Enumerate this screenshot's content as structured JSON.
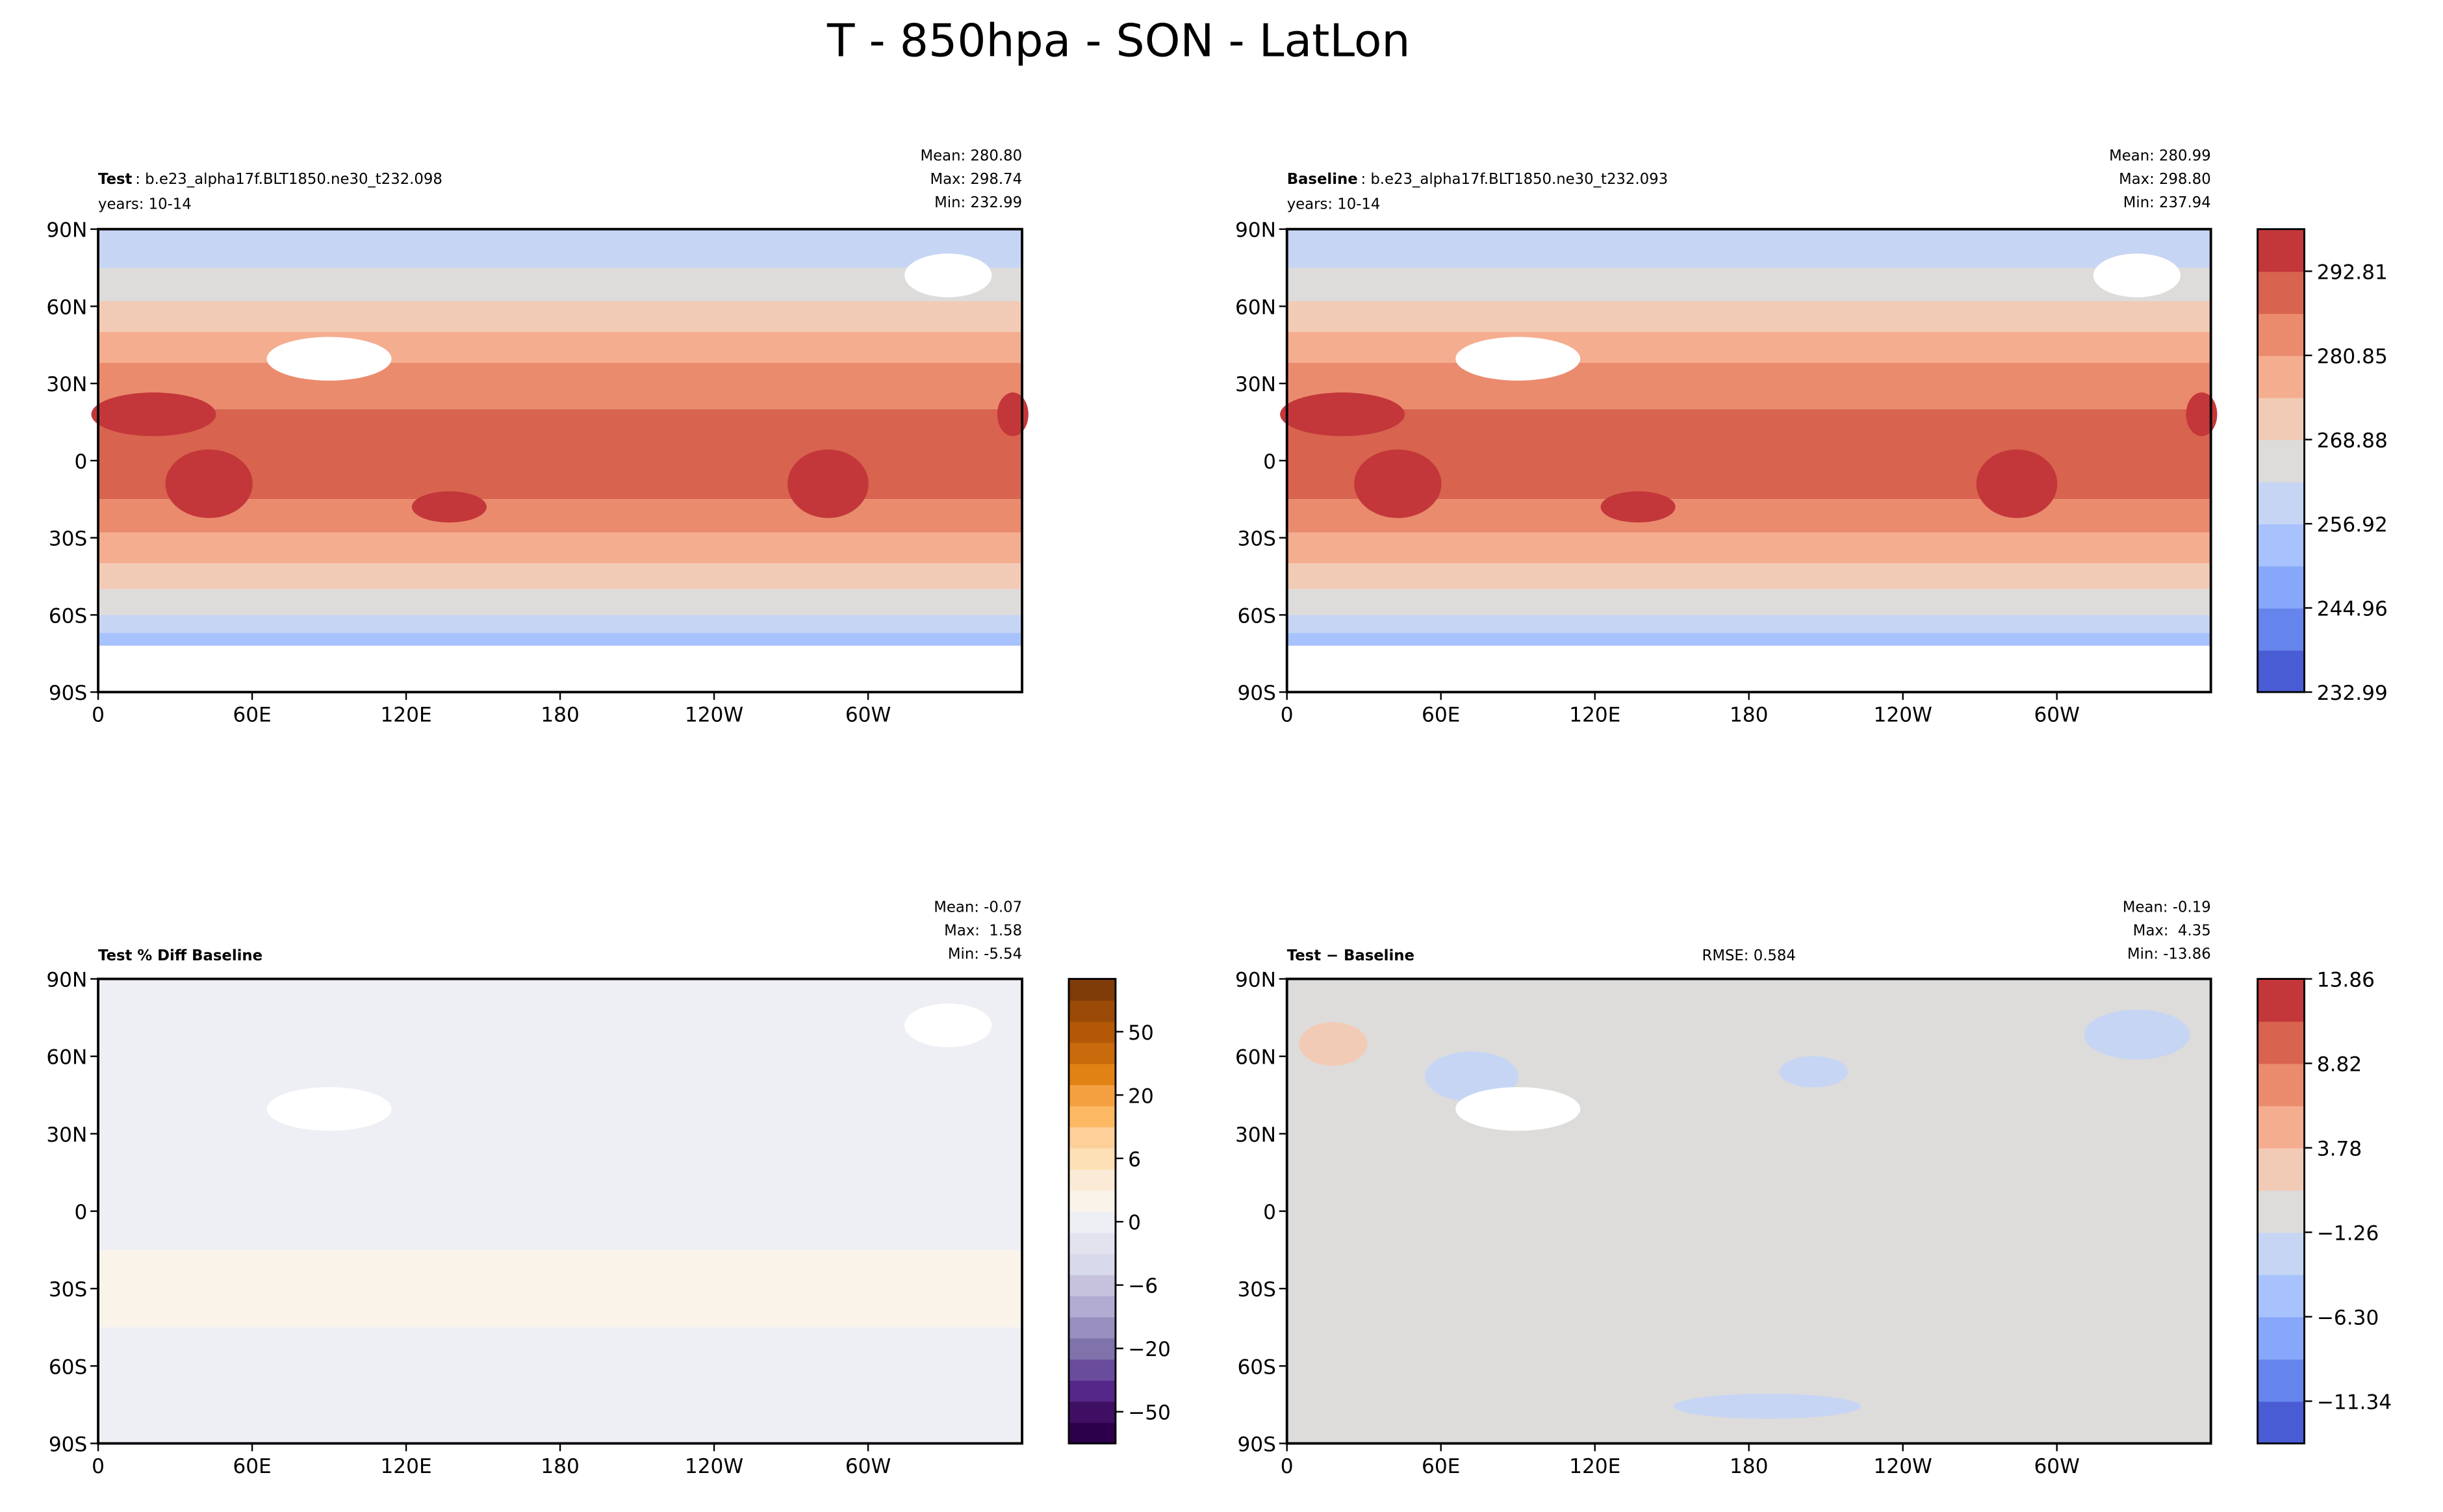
{
  "title": "T - 850hpa - SON - LatLon",
  "map_axes": {
    "xticks": [
      "0",
      "60E",
      "120E",
      "180",
      "120W",
      "60W"
    ],
    "yticks": [
      "90N",
      "60N",
      "30N",
      "0",
      "30S",
      "60S",
      "90S"
    ]
  },
  "panels": [
    {
      "name": "Test",
      "case": ": b.e23_alpha17f.BLT1850.ne30_t232.098",
      "years": "years: 10-14",
      "stats": [
        "Mean: 280.80",
        "Max: 298.74",
        "Min: 232.99"
      ]
    },
    {
      "name": "Baseline",
      "case": ": b.e23_alpha17f.BLT1850.ne30_t232.093",
      "years": "years: 10-14",
      "stats": [
        "Mean: 280.99",
        "Max: 298.80",
        "Min: 237.94"
      ]
    },
    {
      "name": "Test % Diff Baseline",
      "stats": [
        "Mean: -0.07",
        "Max:  1.58",
        "Min: -5.54"
      ]
    },
    {
      "name": "Test − Baseline",
      "rmse": "RMSE: 0.584",
      "stats": [
        "Mean: -0.19",
        "Max:  4.35",
        "Min: -13.86"
      ]
    }
  ],
  "colorbars": [
    {
      "colors": [
        "#4a5cd3",
        "#6685ec",
        "#87a7fa",
        "#a7c2fd",
        "#c6d5f4",
        "#dddcdb",
        "#f2cbb7",
        "#f5ad90",
        "#ea8b6d",
        "#d8634e",
        "#c3373a"
      ],
      "ticks": [
        "232.99",
        "244.96",
        "256.92",
        "268.88",
        "280.85",
        "292.81"
      ]
    },
    {
      "colors": [
        "#2d004b",
        "#3f0f63",
        "#542788",
        "#6a4c9c",
        "#8073ac",
        "#9990bf",
        "#b2abd2",
        "#c6c2de",
        "#d8daeb",
        "#e2e3ef",
        "#eeeff4",
        "#faf3ea",
        "#fbead5",
        "#fee0b6",
        "#fdd09a",
        "#fdb863",
        "#f5a040",
        "#e08214",
        "#c96a0c",
        "#b35806",
        "#9a4a06",
        "#7f3b08"
      ],
      "ticks": [
        "−50",
        "−20",
        "−6",
        "0",
        "6",
        "20",
        "50"
      ]
    },
    {
      "colors": [
        "#4a5cd3",
        "#6685ec",
        "#87a7fa",
        "#a7c2fd",
        "#c6d5f4",
        "#dddcdb",
        "#f2cbb7",
        "#f5ad90",
        "#ea8b6d",
        "#d8634e",
        "#c3373a"
      ],
      "ticks": [
        "−11.34",
        "−6.30",
        "−1.26",
        "3.78",
        "8.82",
        "13.86"
      ]
    }
  ]
}
